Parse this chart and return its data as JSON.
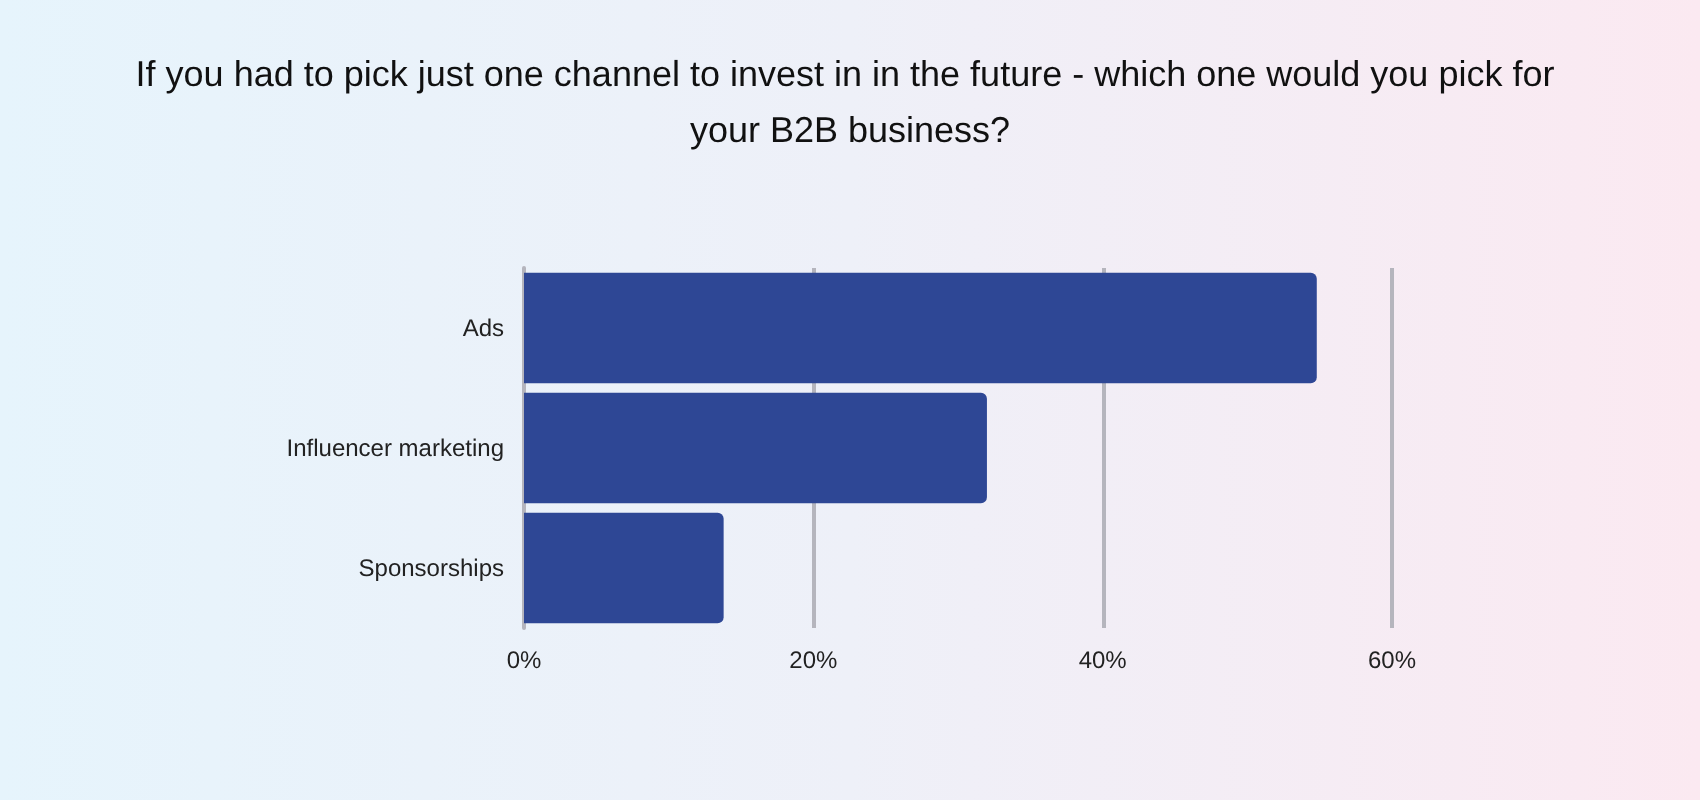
{
  "chart_data": {
    "type": "bar",
    "orientation": "horizontal",
    "title": "If you had to pick just one channel to invest in in the future - which one would you pick for your B2B business?",
    "categories": [
      "Ads",
      "Influencer marketing",
      "Sponsorships"
    ],
    "values": [
      54.8,
      32.0,
      13.8
    ],
    "color": "#2e4795",
    "xlim": [
      0,
      60
    ],
    "xticks": [
      {
        "value": 0,
        "label": "0%"
      },
      {
        "value": 20,
        "label": "20%"
      },
      {
        "value": 40,
        "label": "40%"
      },
      {
        "value": 60,
        "label": "60%"
      }
    ],
    "grid": "x"
  }
}
